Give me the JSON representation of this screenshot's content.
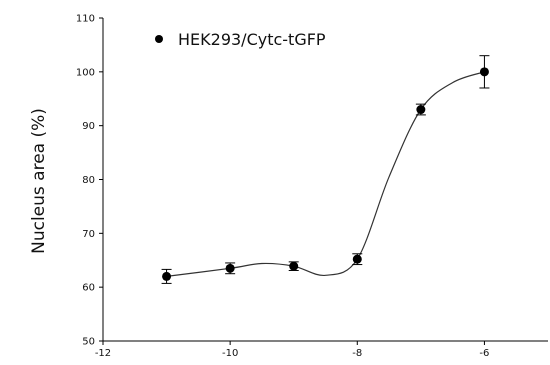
{
  "chart_data": {
    "type": "scatter",
    "title": "",
    "xlabel": "",
    "ylabel": "Nucleus area (%)",
    "xlim": [
      -12,
      -5
    ],
    "ylim": [
      50,
      110
    ],
    "x_ticks": [
      -12,
      -10,
      -8,
      -6
    ],
    "y_ticks": [
      50,
      60,
      70,
      80,
      90,
      100,
      110
    ],
    "x_tick_labels": [
      "-12",
      "-10",
      "-8",
      "-6"
    ],
    "y_tick_labels": [
      "50",
      "60",
      "70",
      "80",
      "90",
      "100",
      "110"
    ],
    "grid": false,
    "legend": {
      "position": "top-left",
      "entries": [
        "HEK293/Cytc-tGFP"
      ]
    },
    "series": [
      {
        "name": "HEK293/Cytc-tGFP",
        "marker": "filled-circle",
        "color": "#000000",
        "x": [
          -11,
          -10,
          -9,
          -8,
          -7,
          -6
        ],
        "y": [
          62.0,
          63.5,
          63.9,
          65.2,
          93.0,
          100.0
        ],
        "error": [
          1.3,
          1.0,
          0.8,
          1.0,
          1.0,
          3.0
        ]
      }
    ],
    "fit_curve": {
      "type": "smooth-spline",
      "color": "#333333",
      "x": [
        -11,
        -10,
        -9.5,
        -9,
        -8.5,
        -8,
        -7.5,
        -7,
        -6.5,
        -6
      ],
      "y": [
        62.0,
        63.5,
        64.4,
        63.9,
        62.2,
        65.2,
        80.5,
        93.0,
        98.0,
        100.0
      ]
    }
  }
}
